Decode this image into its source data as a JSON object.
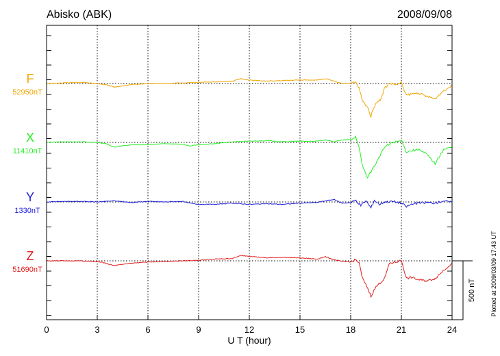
{
  "title": "Abisko (ABK)",
  "date": "2008/09/08",
  "footnote": "Plotted at 2009/03/09 17:43 UT",
  "chart_data": {
    "type": "line",
    "xlabel": "U T (hour)",
    "xlim": [
      0,
      24
    ],
    "x_ticks": [
      "0",
      "3",
      "6",
      "9",
      "12",
      "15",
      "18",
      "21",
      "24"
    ],
    "scale_bar": {
      "label": "500 nT",
      "value_nT": 500
    },
    "series": [
      {
        "name": "F",
        "baseline_label": "52950nT",
        "color": "#f0a500",
        "points": [
          [
            0,
            0
          ],
          [
            1,
            5
          ],
          [
            2,
            10
          ],
          [
            3,
            0
          ],
          [
            3.5,
            -10
          ],
          [
            4,
            -30
          ],
          [
            4.5,
            -20
          ],
          [
            5,
            -10
          ],
          [
            6,
            0
          ],
          [
            7,
            0
          ],
          [
            8,
            5
          ],
          [
            9,
            10
          ],
          [
            10,
            15
          ],
          [
            11,
            20
          ],
          [
            11.5,
            40
          ],
          [
            12,
            30
          ],
          [
            13,
            20
          ],
          [
            14,
            25
          ],
          [
            15,
            30
          ],
          [
            16,
            30
          ],
          [
            16.5,
            40
          ],
          [
            17,
            20
          ],
          [
            17.5,
            0
          ],
          [
            18,
            0
          ],
          [
            18.3,
            10
          ],
          [
            18.5,
            -40
          ],
          [
            18.7,
            -150
          ],
          [
            19,
            -200
          ],
          [
            19.2,
            -280
          ],
          [
            19.3,
            -220
          ],
          [
            19.6,
            -150
          ],
          [
            19.8,
            -130
          ],
          [
            20,
            -40
          ],
          [
            20.3,
            0
          ],
          [
            20.7,
            -10
          ],
          [
            21,
            5
          ],
          [
            21.3,
            -100
          ],
          [
            21.6,
            -90
          ],
          [
            22,
            -80
          ],
          [
            22.5,
            -110
          ],
          [
            23,
            -130
          ],
          [
            23.5,
            -60
          ],
          [
            24,
            -20
          ]
        ]
      },
      {
        "name": "X",
        "baseline_label": "11410nT",
        "color": "#22ee22",
        "points": [
          [
            0,
            0
          ],
          [
            1,
            5
          ],
          [
            2,
            5
          ],
          [
            3,
            0
          ],
          [
            3.5,
            -10
          ],
          [
            4,
            -40
          ],
          [
            4.5,
            -30
          ],
          [
            5,
            -20
          ],
          [
            6,
            -20
          ],
          [
            7,
            -10
          ],
          [
            8,
            -15
          ],
          [
            8.5,
            -30
          ],
          [
            9,
            -20
          ],
          [
            10,
            -10
          ],
          [
            11,
            5
          ],
          [
            12,
            10
          ],
          [
            13,
            15
          ],
          [
            14,
            5
          ],
          [
            15,
            10
          ],
          [
            16,
            10
          ],
          [
            16.5,
            20
          ],
          [
            17,
            5
          ],
          [
            17.5,
            20
          ],
          [
            18,
            25
          ],
          [
            18.3,
            50
          ],
          [
            18.5,
            -50
          ],
          [
            18.7,
            -200
          ],
          [
            19,
            -300
          ],
          [
            19.2,
            -250
          ],
          [
            19.4,
            -200
          ],
          [
            19.6,
            -150
          ],
          [
            20,
            -40
          ],
          [
            20.5,
            0
          ],
          [
            21,
            15
          ],
          [
            21.3,
            -80
          ],
          [
            21.6,
            -70
          ],
          [
            22,
            -60
          ],
          [
            22.5,
            -100
          ],
          [
            23,
            -180
          ],
          [
            23.5,
            -60
          ],
          [
            24,
            -40
          ]
        ]
      },
      {
        "name": "Y",
        "baseline_label": "1330nT",
        "color": "#1a1ad8",
        "points": [
          [
            0,
            0
          ],
          [
            1,
            5
          ],
          [
            2,
            5
          ],
          [
            3,
            0
          ],
          [
            4,
            10
          ],
          [
            5,
            -5
          ],
          [
            6,
            5
          ],
          [
            7,
            0
          ],
          [
            8,
            5
          ],
          [
            8.5,
            -10
          ],
          [
            9,
            -20
          ],
          [
            10,
            -20
          ],
          [
            11,
            -10
          ],
          [
            12,
            -20
          ],
          [
            13,
            -15
          ],
          [
            14,
            -20
          ],
          [
            15,
            -10
          ],
          [
            16,
            -5
          ],
          [
            16.5,
            10
          ],
          [
            17,
            20
          ],
          [
            17.5,
            -10
          ],
          [
            18,
            -5
          ],
          [
            18.3,
            15
          ],
          [
            18.6,
            -30
          ],
          [
            18.9,
            10
          ],
          [
            19.2,
            -50
          ],
          [
            19.4,
            15
          ],
          [
            19.7,
            -20
          ],
          [
            20,
            0
          ],
          [
            20.5,
            5
          ],
          [
            21,
            -10
          ],
          [
            21.3,
            -40
          ],
          [
            21.6,
            -20
          ],
          [
            22,
            -10
          ],
          [
            22.5,
            -5
          ],
          [
            23,
            -10
          ],
          [
            23.5,
            10
          ],
          [
            24,
            -5
          ]
        ]
      },
      {
        "name": "Z",
        "baseline_label": "51690nT",
        "color": "#e01a1a",
        "points": [
          [
            0,
            0
          ],
          [
            1,
            0
          ],
          [
            2,
            0
          ],
          [
            3,
            -5
          ],
          [
            3.5,
            -20
          ],
          [
            4,
            -40
          ],
          [
            4.5,
            -30
          ],
          [
            5,
            -20
          ],
          [
            6,
            -10
          ],
          [
            7,
            -5
          ],
          [
            8,
            0
          ],
          [
            9,
            5
          ],
          [
            10,
            15
          ],
          [
            11,
            20
          ],
          [
            11.5,
            45
          ],
          [
            12,
            40
          ],
          [
            13,
            25
          ],
          [
            14,
            30
          ],
          [
            15,
            25
          ],
          [
            16,
            15
          ],
          [
            16.5,
            35
          ],
          [
            17,
            10
          ],
          [
            17.5,
            -5
          ],
          [
            18,
            -10
          ],
          [
            18.3,
            10
          ],
          [
            18.5,
            -20
          ],
          [
            18.7,
            -150
          ],
          [
            19,
            -230
          ],
          [
            19.2,
            -300
          ],
          [
            19.5,
            -220
          ],
          [
            19.8,
            -180
          ],
          [
            20,
            -150
          ],
          [
            20.3,
            -20
          ],
          [
            20.7,
            -10
          ],
          [
            21,
            5
          ],
          [
            21.3,
            -150
          ],
          [
            21.6,
            -140
          ],
          [
            22,
            -160
          ],
          [
            22.5,
            -170
          ],
          [
            23,
            -150
          ],
          [
            23.5,
            -80
          ],
          [
            24,
            -20
          ]
        ]
      }
    ]
  }
}
